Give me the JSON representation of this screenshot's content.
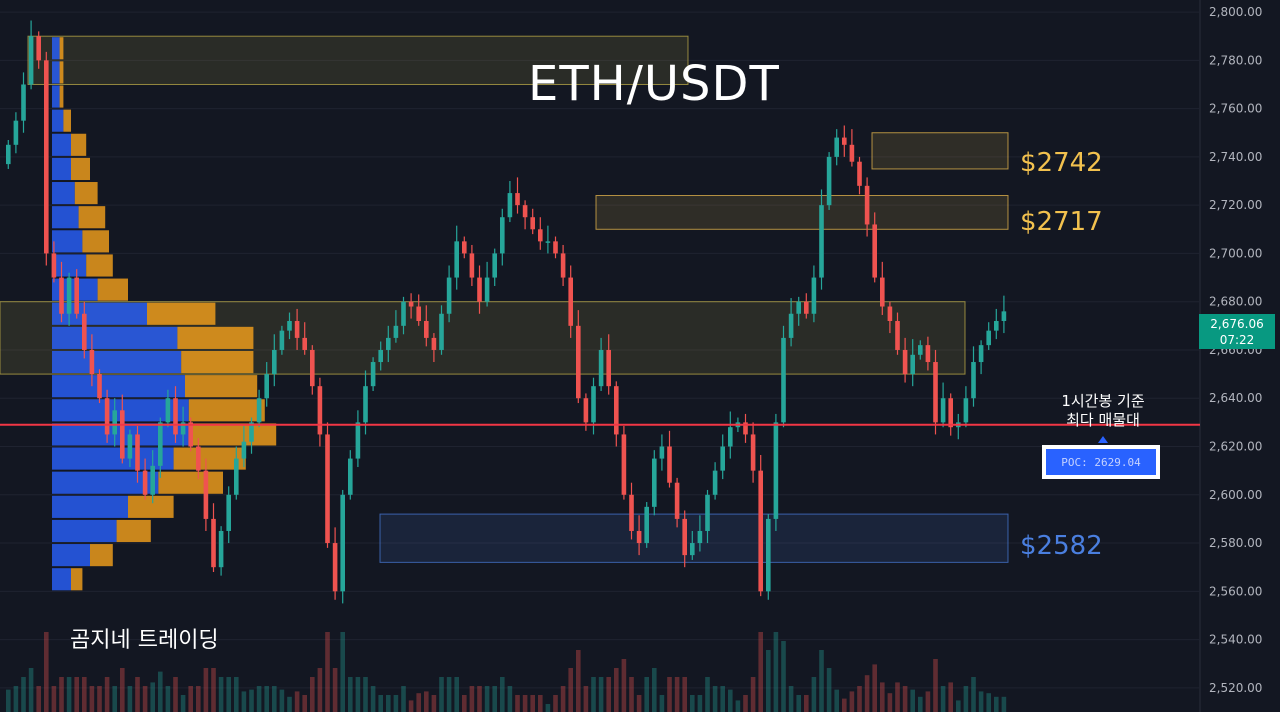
{
  "chart_data": {
    "type": "candlestick",
    "title": "ETH/USDT",
    "ylim": [
      2510,
      2805
    ],
    "y_ticks": [
      "2,800.00",
      "2,780.00",
      "2,760.00",
      "2,740.00",
      "2,720.00",
      "2,700.00",
      "2,680.00",
      "2,660.00",
      "2,640.00",
      "2,620.00",
      "2,600.00",
      "2,580.00",
      "2,560.00",
      "2,540.00",
      "2,520.00"
    ],
    "y_tick_values": [
      2800,
      2780,
      2760,
      2740,
      2720,
      2700,
      2680,
      2660,
      2640,
      2620,
      2600,
      2580,
      2560,
      2540,
      2520
    ],
    "grid": true,
    "closes": [
      2745,
      2755,
      2770,
      2790,
      2780,
      2700,
      2690,
      2675,
      2690,
      2675,
      2660,
      2650,
      2640,
      2625,
      2635,
      2615,
      2625,
      2610,
      2600,
      2612,
      2630,
      2640,
      2625,
      2630,
      2620,
      2610,
      2590,
      2570,
      2585,
      2600,
      2615,
      2622,
      2630,
      2640,
      2650,
      2660,
      2668,
      2672,
      2665,
      2660,
      2645,
      2625,
      2580,
      2560,
      2600,
      2615,
      2630,
      2645,
      2655,
      2660,
      2665,
      2670,
      2680,
      2678,
      2672,
      2665,
      2660,
      2675,
      2690,
      2705,
      2700,
      2690,
      2680,
      2690,
      2700,
      2715,
      2725,
      2720,
      2715,
      2710,
      2705,
      2705,
      2700,
      2690,
      2670,
      2640,
      2630,
      2645,
      2660,
      2645,
      2625,
      2600,
      2585,
      2580,
      2595,
      2615,
      2620,
      2605,
      2590,
      2575,
      2580,
      2585,
      2600,
      2610,
      2620,
      2628,
      2630,
      2625,
      2610,
      2560,
      2590,
      2630,
      2665,
      2675,
      2680,
      2675,
      2690,
      2720,
      2740,
      2748,
      2745,
      2738,
      2728,
      2712,
      2690,
      2678,
      2672,
      2660,
      2650,
      2658,
      2662,
      2655,
      2630,
      2640,
      2628,
      2630,
      2640,
      2655,
      2662,
      2668,
      2672,
      2676
    ],
    "current_price_label": "2,676.06",
    "countdown_label": "07:22",
    "poc_value": 2629.04,
    "poc_label": "POC: 2629.04",
    "zones": [
      {
        "label": "",
        "top": 2790,
        "bottom": 2770,
        "color": "#c9b74a"
      },
      {
        "label": "$2742",
        "top": 2750,
        "bottom": 2735,
        "color": "#f2c14e"
      },
      {
        "label": "$2717",
        "top": 2724,
        "bottom": 2710,
        "color": "#f2c14e"
      },
      {
        "label": "",
        "top": 2680,
        "bottom": 2650,
        "color": "#c9b74a"
      },
      {
        "label": "$2582",
        "top": 2592,
        "bottom": 2572,
        "color": "#4a7fe0"
      }
    ],
    "volume_profile": {
      "levels": [
        2785,
        2775,
        2765,
        2755,
        2745,
        2735,
        2725,
        2715,
        2705,
        2695,
        2685,
        2675,
        2665,
        2655,
        2645,
        2635,
        2625,
        2615,
        2605,
        2595,
        2585,
        2575,
        2565
      ],
      "buy": [
        4,
        4,
        4,
        6,
        10,
        10,
        12,
        14,
        16,
        18,
        24,
        50,
        66,
        68,
        70,
        72,
        74,
        64,
        56,
        40,
        34,
        20,
        10
      ],
      "sell": [
        2,
        2,
        2,
        4,
        8,
        10,
        12,
        14,
        14,
        14,
        16,
        36,
        40,
        38,
        38,
        40,
        44,
        38,
        34,
        24,
        18,
        12,
        6
      ]
    }
  },
  "annotations": {
    "level_2742": "$2742",
    "level_2717": "$2717",
    "level_2582": "$2582",
    "poc_note": [
      "1시간봉 기준",
      "최다 매물대"
    ],
    "poc_label": "POC: 2629.04",
    "watermark": "곰지네 트레이딩"
  },
  "price_axis": {
    "current_price": "2,676.06",
    "countdown": "07:22"
  },
  "colors": {
    "background": "#131722",
    "up": "#26a69a",
    "down": "#ef5350",
    "poc_line": "#f23645",
    "buy_volume": "#2962ff",
    "sell_volume": "#f7a21b",
    "zone_yellow": "#f2c14e",
    "zone_blue": "#4a7fe0",
    "axis_text": "#b2b5be"
  }
}
